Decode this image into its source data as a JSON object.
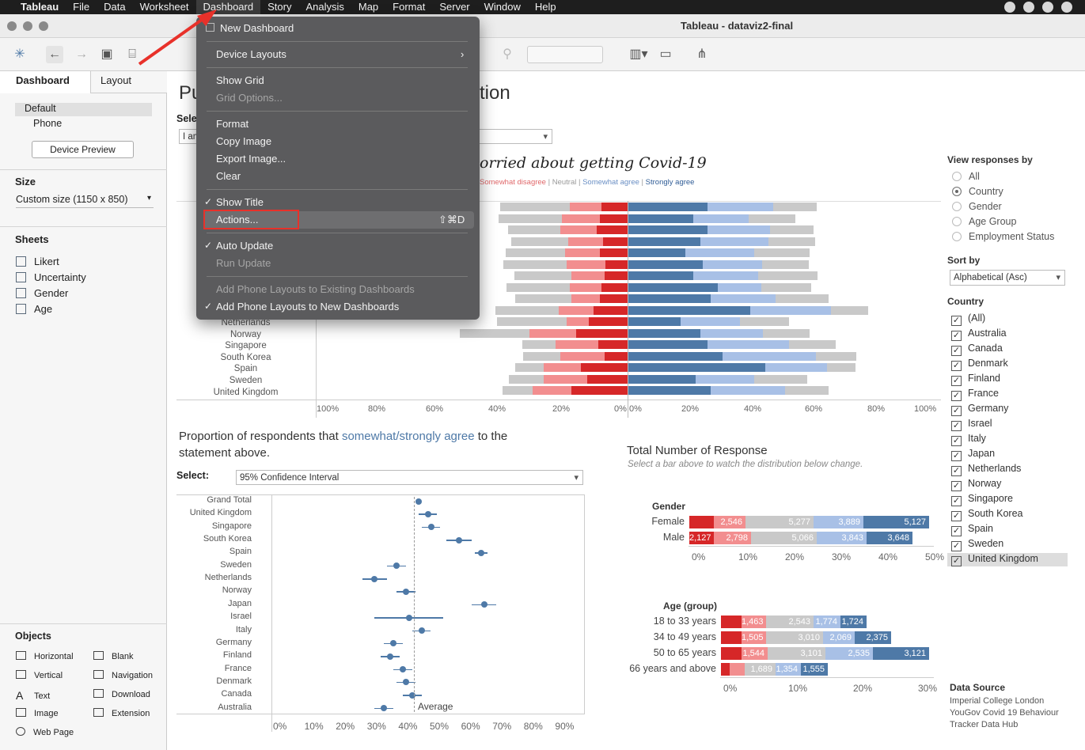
{
  "menubar": {
    "items": [
      "Tableau",
      "File",
      "Data",
      "Worksheet",
      "Dashboard",
      "Story",
      "Analysis",
      "Map",
      "Format",
      "Server",
      "Window",
      "Help"
    ],
    "active": "Dashboard"
  },
  "window": {
    "title": "Tableau - dataviz2-final"
  },
  "dashboard_menu": {
    "new_dashboard": "New Dashboard",
    "device_layouts": "Device Layouts",
    "show_grid": "Show Grid",
    "grid_options": "Grid Options...",
    "format": "Format",
    "copy_image": "Copy Image",
    "export_image": "Export Image...",
    "clear": "Clear",
    "show_title": "Show Title",
    "actions": "Actions...",
    "actions_shortcut": "⇧⌘D",
    "auto_update": "Auto Update",
    "run_update": "Run Update",
    "add_phone_existing": "Add Phone Layouts to Existing Dashboards",
    "add_phone_new": "Add Phone Layouts to New Dashboards"
  },
  "left_panel": {
    "tabs": [
      "Dashboard",
      "Layout"
    ],
    "layouts": [
      "Default",
      "Phone"
    ],
    "device_preview": "Device Preview",
    "size_heading": "Size",
    "size_value": "Custom size (1150 x 850)",
    "sheets_heading": "Sheets",
    "sheets": [
      "Likert",
      "Uncertainty",
      "Gender",
      "Age"
    ],
    "objects_heading": "Objects",
    "objects": [
      "Horizontal",
      "Blank",
      "Vertical",
      "Navigation",
      "Text",
      "Download",
      "Image",
      "Extension",
      "Web Page"
    ]
  },
  "dashboard": {
    "title_left": "Pu",
    "title_right": "tion",
    "select_label_top": "Sele",
    "select_value_top": "I am",
    "likert_title_partial": "orried about getting Covid-19",
    "legend": {
      "somewhat_disagree": "Somewhat disagree",
      "neutral": "Neutral",
      "somewhat_agree": "Somewhat agree",
      "strongly_agree": "Strongly agree"
    },
    "likert_countries_visible": [
      "Netherlands",
      "Norway",
      "Singapore",
      "South Korea",
      "Spain",
      "Sweden",
      "United Kingdom"
    ],
    "likert_axis": [
      "100%",
      "80%",
      "60%",
      "40%",
      "20%",
      "0%",
      "0%",
      "20%",
      "40%",
      "60%",
      "80%",
      "100%"
    ],
    "proportion_title_1": "Proportion of respondents that ",
    "proportion_title_highlight": "somewhat/strongly agree",
    "proportion_title_2": " to the",
    "proportion_title_3": "statement above.",
    "ci_select_label": "Select:",
    "ci_select_value": "95% Confidence Interval",
    "ci_rows": [
      "Grand Total",
      "United Kingdom",
      "Singapore",
      "South Korea",
      "Spain",
      "Sweden",
      "Netherlands",
      "Norway",
      "Japan",
      "Israel",
      "Italy",
      "Germany",
      "Finland",
      "France",
      "Denmark",
      "Canada",
      "Australia"
    ],
    "ci_axis": [
      "0%",
      "10%",
      "20%",
      "30%",
      "40%",
      "50%",
      "60%",
      "70%",
      "80%",
      "90%"
    ],
    "average_label": "Average",
    "total_title": "Total Number of Response",
    "total_subtitle": "Select a bar above to watch the distribution below change.",
    "gender_heading": "Gender",
    "gender_rows": [
      {
        "label": "Female",
        "values": [
          "",
          "2,546",
          "5,277",
          "3,889",
          "5,127"
        ]
      },
      {
        "label": "Male",
        "values": [
          "2,127",
          "2,798",
          "5,066",
          "3,843",
          "3,648"
        ]
      }
    ],
    "gender_axis": [
      "0%",
      "10%",
      "20%",
      "30%",
      "40%",
      "50%"
    ],
    "age_heading": "Age (group)",
    "age_rows": [
      {
        "label": "18 to 33 years",
        "values": [
          "",
          "1,463",
          "2,543",
          "1,774",
          "1,724"
        ]
      },
      {
        "label": "34 to 49 years",
        "values": [
          "",
          "1,505",
          "3,010",
          "2,069",
          "2,375"
        ]
      },
      {
        "label": "50 to 65 years",
        "values": [
          "",
          "1,544",
          "3,101",
          "2,535",
          "3,121"
        ]
      },
      {
        "label": "66 years and above",
        "values": [
          "",
          "",
          "1,689",
          "1,354",
          "1,555"
        ]
      }
    ],
    "age_axis": [
      "0%",
      "10%",
      "20%",
      "30%"
    ],
    "view_by_heading": "View responses by",
    "view_by_options": [
      "All",
      "Country",
      "Gender",
      "Age Group",
      "Employment Status"
    ],
    "view_by_selected": "Country",
    "sort_by_heading": "Sort by",
    "sort_by_value": "Alphabetical (Asc)",
    "country_heading": "Country",
    "country_filter": [
      "(All)",
      "Australia",
      "Canada",
      "Denmark",
      "Finland",
      "France",
      "Germany",
      "Israel",
      "Italy",
      "Japan",
      "Netherlands",
      "Norway",
      "Singapore",
      "South Korea",
      "Spain",
      "Sweden",
      "United Kingdom"
    ],
    "data_source_heading": "Data Source",
    "data_source_lines": [
      "Imperial College London",
      "YouGov Covid 19 Behaviour",
      "Tracker Data Hub"
    ]
  },
  "colors": {
    "strong_disagree": "#d62728",
    "somewhat_disagree": "#f28e8f",
    "neutral": "#c9c9c9",
    "somewhat_agree": "#a8c0e6",
    "strong_agree": "#4e79a7",
    "accent_text": "#4e79a7",
    "annotation": "#e8312a"
  }
}
